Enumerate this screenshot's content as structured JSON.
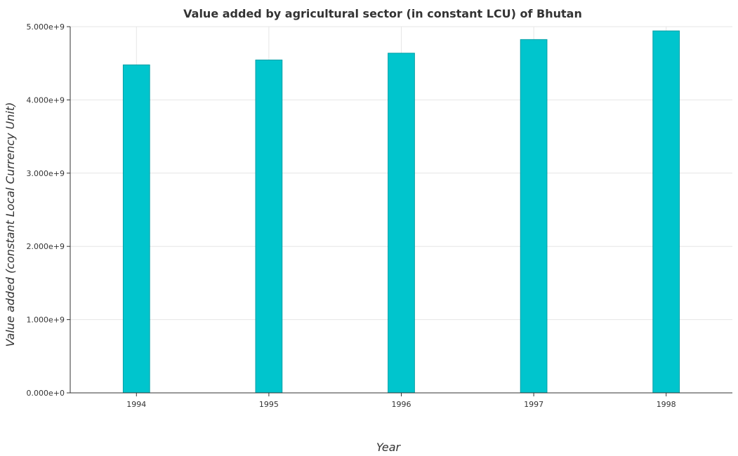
{
  "chart_data": {
    "type": "bar",
    "title": "Value added by agricultural sector (in constant LCU) of Bhutan",
    "xlabel": "Year",
    "ylabel": "Value added (constant Local Currency Unit)",
    "categories": [
      "1994",
      "1995",
      "1996",
      "1997",
      "1998"
    ],
    "values": [
      4478000000,
      4545000000,
      4638000000,
      4824000000,
      4942000000
    ],
    "ylim": [
      0,
      5000000000
    ],
    "yticks": [
      0,
      1000000000,
      2000000000,
      3000000000,
      4000000000,
      5000000000
    ],
    "ytick_labels": [
      "0.000e+0",
      "1.000e+9",
      "2.000e+9",
      "3.000e+9",
      "4.000e+9",
      "5.000e+9"
    ],
    "grid": true,
    "legend": "none",
    "bar_color": "#00c5cd",
    "bar_edge_color": "#009fa6"
  }
}
